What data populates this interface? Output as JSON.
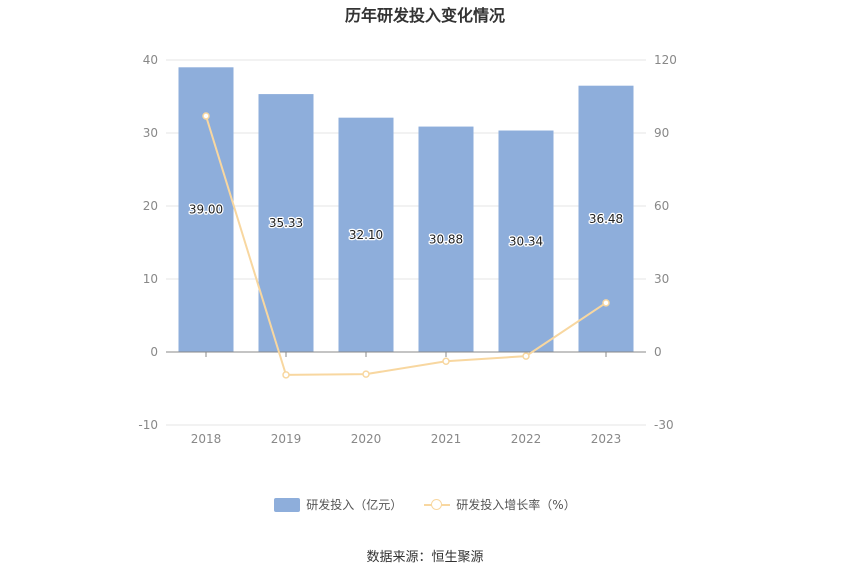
{
  "chart_data": {
    "type": "bar",
    "title": "历年研发投入变化情况",
    "categories": [
      "2018",
      "2019",
      "2020",
      "2021",
      "2022",
      "2023"
    ],
    "series": [
      {
        "name": "研发投入（亿元）",
        "type": "bar",
        "axis": "left",
        "values": [
          39.0,
          35.33,
          32.1,
          30.88,
          30.34,
          36.48
        ],
        "labels": [
          "39.00",
          "35.33",
          "32.10",
          "30.88",
          "30.34",
          "36.48"
        ]
      },
      {
        "name": "研发投入增长率（%）",
        "type": "line",
        "axis": "right",
        "values": [
          97,
          -9.4,
          -9.1,
          -3.8,
          -1.7,
          20.2
        ]
      }
    ],
    "y_left": {
      "range": [
        -10,
        40
      ],
      "ticks": [
        "-10",
        "0",
        "10",
        "20",
        "30",
        "40"
      ]
    },
    "y_right": {
      "range": [
        -30,
        120
      ],
      "ticks": [
        "-30",
        "0",
        "30",
        "60",
        "90",
        "120"
      ]
    },
    "grid": true,
    "legend_position": "bottom",
    "source": "数据来源：恒生聚源"
  },
  "colors": {
    "bar": "#8eaedb",
    "line": "#f8d7a0",
    "grid": "#e6e6e6",
    "axis": "#888888"
  }
}
